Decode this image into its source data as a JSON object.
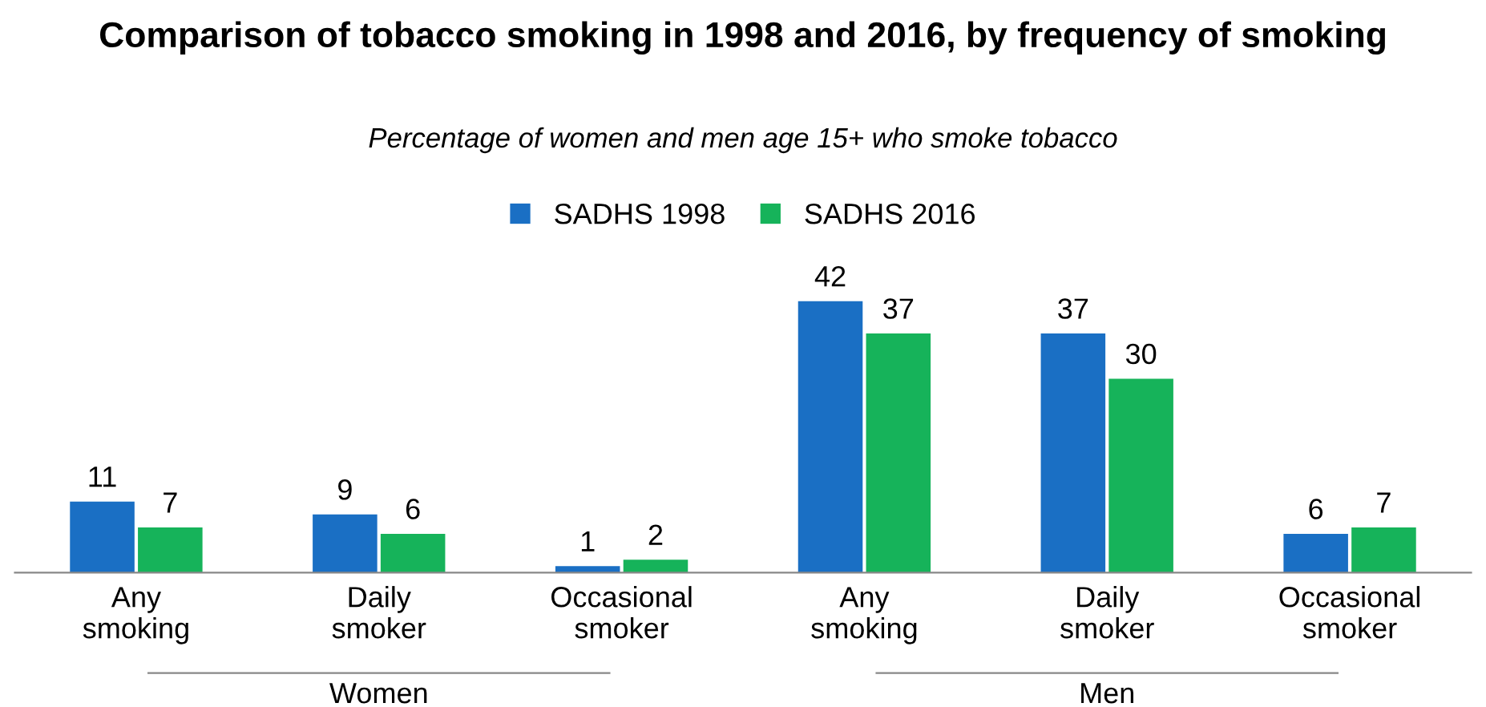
{
  "chart_data": {
    "type": "bar",
    "title": "Comparison of tobacco smoking in 1998 and 2016, by frequency of smoking",
    "subtitle": "Percentage of women and men age 15+ who smoke tobacco",
    "categories": [
      "Any smoking",
      "Daily smoker",
      "Occasional smoker",
      "Any smoking",
      "Daily smoker",
      "Occasional smoker"
    ],
    "series": [
      {
        "name": "SADHS 1998",
        "color": "#1a6fc4",
        "values": [
          11,
          9,
          1,
          42,
          37,
          6
        ]
      },
      {
        "name": "SADHS 2016",
        "color": "#16b35a",
        "values": [
          7,
          6,
          2,
          37,
          30,
          7
        ]
      }
    ],
    "data_labels": true,
    "legend": "top",
    "grid": false,
    "annotations": [
      "Women",
      "Men"
    ]
  }
}
